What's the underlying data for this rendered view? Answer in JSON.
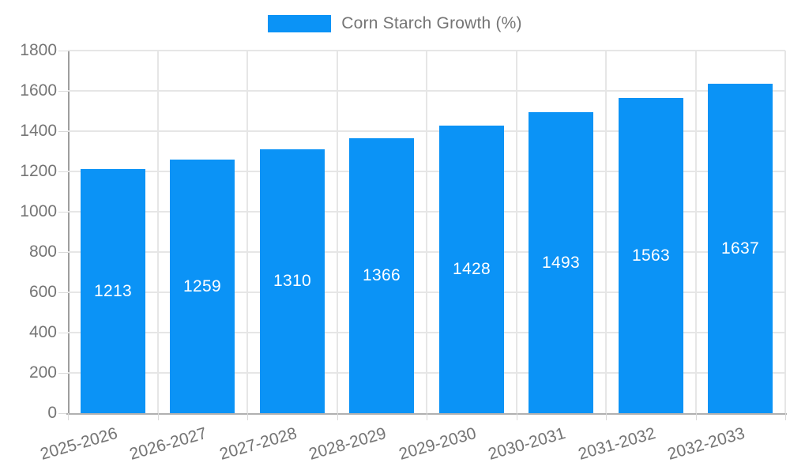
{
  "legend": {
    "label": "Corn Starch Growth (%)"
  },
  "chart_data": {
    "type": "bar",
    "title": "Corn Starch Growth (%)",
    "series_name": "Corn Starch Growth (%)",
    "categories": [
      "2025-2026",
      "2026-2027",
      "2027-2028",
      "2028-2029",
      "2029-2030",
      "2030-2031",
      "2031-2032",
      "2032-2033"
    ],
    "values": [
      1213,
      1259,
      1310,
      1366,
      1428,
      1493,
      1563,
      1637
    ],
    "value_labels": [
      "1213",
      "1259",
      "1310",
      "1366",
      "1428",
      "1493",
      "1563",
      "1637"
    ],
    "ylim": [
      0,
      1800
    ],
    "ytick_step": 200,
    "y_ticks": [
      0,
      200,
      400,
      600,
      800,
      1000,
      1200,
      1400,
      1600,
      1800
    ],
    "grid": true,
    "legend_position": "top",
    "colors": {
      "bar": "#0b93f6",
      "value_label": "#ffffff",
      "axis_text": "#757575",
      "gridline": "#e6e6e6",
      "axis_line": "#9e9e9e",
      "baseline": "#b0b0b0",
      "tick": "#d9d9d9",
      "background": "#ffffff"
    }
  }
}
